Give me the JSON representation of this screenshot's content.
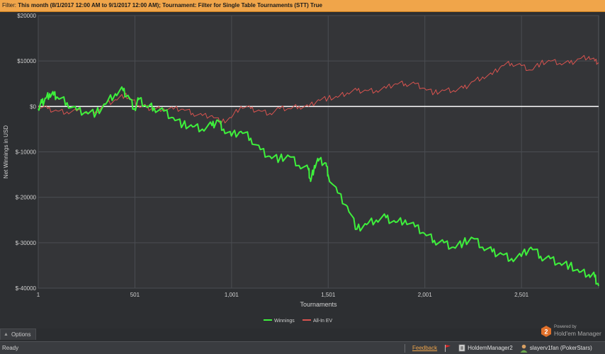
{
  "filter_bar": {
    "label": "Filter:",
    "text": "This month (8/1/2017 12:00 AM to 9/1/2017 12:00 AM); Tournament: Filter for Single Table Tournaments (STT) True"
  },
  "chart_data": {
    "type": "line",
    "xlabel": "Tournaments",
    "ylabel": "Net Winnings in USD",
    "xlim": [
      1,
      2900
    ],
    "ylim": [
      -40000,
      20000
    ],
    "x_ticks": [
      1,
      501,
      1001,
      1501,
      2001,
      2501
    ],
    "x_tick_labels": [
      "1",
      "501",
      "1,001",
      "1,501",
      "2,001",
      "2,501"
    ],
    "y_ticks": [
      20000,
      10000,
      0,
      -10000,
      -20000,
      -30000,
      -40000
    ],
    "y_tick_labels": [
      "$20000",
      "$10000",
      "$0",
      "$-10000",
      "$-20000",
      "$-30000",
      "$-40000"
    ],
    "grid": true,
    "legend_position": "bottom-center",
    "colors": {
      "winnings": "#3ef03c",
      "all_in_ev": "#d9534f",
      "zero_line": "#ffffff",
      "grid": "#4a4d52"
    },
    "series": [
      {
        "name": "Winnings",
        "points": [
          [
            1,
            -500
          ],
          [
            20,
            800
          ],
          [
            40,
            1800
          ],
          [
            60,
            2800
          ],
          [
            80,
            2500
          ],
          [
            100,
            2000
          ],
          [
            150,
            800
          ],
          [
            200,
            -800
          ],
          [
            250,
            -1200
          ],
          [
            300,
            -1500
          ],
          [
            350,
            500
          ],
          [
            400,
            2800
          ],
          [
            440,
            3500
          ],
          [
            470,
            2000
          ],
          [
            500,
            -500
          ],
          [
            520,
            1500
          ],
          [
            560,
            0
          ],
          [
            600,
            -300
          ],
          [
            650,
            -1000
          ],
          [
            700,
            -2500
          ],
          [
            750,
            -4000
          ],
          [
            800,
            -4500
          ],
          [
            850,
            -5000
          ],
          [
            900,
            -4200
          ],
          [
            930,
            -3000
          ],
          [
            960,
            -5000
          ],
          [
            1000,
            -6500
          ],
          [
            1050,
            -5500
          ],
          [
            1100,
            -7000
          ],
          [
            1150,
            -9500
          ],
          [
            1200,
            -11000
          ],
          [
            1250,
            -11500
          ],
          [
            1300,
            -11000
          ],
          [
            1350,
            -13000
          ],
          [
            1400,
            -14000
          ],
          [
            1410,
            -16500
          ],
          [
            1430,
            -13000
          ],
          [
            1450,
            -12000
          ],
          [
            1490,
            -12500
          ],
          [
            1500,
            -15000
          ],
          [
            1550,
            -19000
          ],
          [
            1600,
            -22000
          ],
          [
            1650,
            -27000
          ],
          [
            1700,
            -26000
          ],
          [
            1750,
            -25000
          ],
          [
            1800,
            -24500
          ],
          [
            1850,
            -25500
          ],
          [
            1900,
            -25000
          ],
          [
            1950,
            -26500
          ],
          [
            2000,
            -28000
          ],
          [
            2050,
            -29500
          ],
          [
            2100,
            -30000
          ],
          [
            2150,
            -31000
          ],
          [
            2200,
            -30000
          ],
          [
            2250,
            -29000
          ],
          [
            2300,
            -31000
          ],
          [
            2350,
            -32000
          ],
          [
            2400,
            -32500
          ],
          [
            2450,
            -33500
          ],
          [
            2500,
            -33000
          ],
          [
            2550,
            -31000
          ],
          [
            2600,
            -33000
          ],
          [
            2650,
            -33500
          ],
          [
            2700,
            -34500
          ],
          [
            2750,
            -35000
          ],
          [
            2800,
            -36500
          ],
          [
            2850,
            -37000
          ],
          [
            2880,
            -37500
          ],
          [
            2900,
            -39500
          ]
        ]
      },
      {
        "name": "All-In EV",
        "points": [
          [
            1,
            0
          ],
          [
            50,
            -500
          ],
          [
            100,
            -1000
          ],
          [
            150,
            -1200
          ],
          [
            200,
            -1000
          ],
          [
            250,
            -1500
          ],
          [
            300,
            -1000
          ],
          [
            350,
            500
          ],
          [
            400,
            1500
          ],
          [
            450,
            2500
          ],
          [
            480,
            1500
          ],
          [
            520,
            200
          ],
          [
            560,
            -200
          ],
          [
            600,
            -500
          ],
          [
            650,
            -500
          ],
          [
            700,
            -600
          ],
          [
            750,
            -600
          ],
          [
            800,
            -1500
          ],
          [
            850,
            -2000
          ],
          [
            900,
            -2000
          ],
          [
            950,
            -3500
          ],
          [
            1000,
            -2500
          ],
          [
            1050,
            0
          ],
          [
            1100,
            -500
          ],
          [
            1150,
            -1000
          ],
          [
            1200,
            -1500
          ],
          [
            1250,
            -500
          ],
          [
            1300,
            -500
          ],
          [
            1350,
            0
          ],
          [
            1400,
            0
          ],
          [
            1450,
            1500
          ],
          [
            1500,
            1800
          ],
          [
            1550,
            2000
          ],
          [
            1600,
            3000
          ],
          [
            1650,
            3500
          ],
          [
            1700,
            3500
          ],
          [
            1750,
            3500
          ],
          [
            1800,
            4000
          ],
          [
            1850,
            5000
          ],
          [
            1900,
            5000
          ],
          [
            1950,
            5000
          ],
          [
            2000,
            4000
          ],
          [
            2050,
            3000
          ],
          [
            2100,
            3500
          ],
          [
            2150,
            3500
          ],
          [
            2200,
            4000
          ],
          [
            2250,
            5500
          ],
          [
            2300,
            6500
          ],
          [
            2350,
            7000
          ],
          [
            2400,
            9000
          ],
          [
            2450,
            9500
          ],
          [
            2500,
            9000
          ],
          [
            2550,
            8000
          ],
          [
            2600,
            9500
          ],
          [
            2650,
            10000
          ],
          [
            2700,
            9500
          ],
          [
            2750,
            9500
          ],
          [
            2800,
            10500
          ],
          [
            2850,
            11000
          ],
          [
            2880,
            10000
          ],
          [
            2900,
            9500
          ]
        ]
      }
    ]
  },
  "options": {
    "label": "Options"
  },
  "status_bar": {
    "ready": "Ready",
    "feedback": "Feedback",
    "app_name": "HoldemManager2",
    "user": "slayerv1fan (PokerStars)"
  },
  "powered_by": {
    "line1": "Powered by",
    "line2": "Hold'em Manager",
    "badge": "2"
  }
}
